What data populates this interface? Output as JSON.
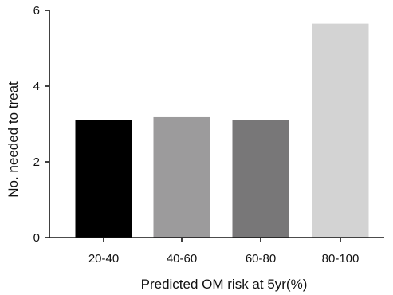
{
  "chart_data": {
    "type": "bar",
    "title": "",
    "xlabel": "Predicted OM risk at 5yr(%)",
    "ylabel": "No. needed to treat",
    "categories": [
      "20-40",
      "40-60",
      "60-80",
      "80-100"
    ],
    "values": [
      3.1,
      3.18,
      3.1,
      5.65
    ],
    "bar_colors": [
      "#000000",
      "#9c9b9c",
      "#787778",
      "#d3d3d3"
    ],
    "ylim": [
      0,
      6
    ],
    "yticks": [
      "0",
      "2",
      "4",
      "6"
    ],
    "grid": false,
    "legend": false
  }
}
